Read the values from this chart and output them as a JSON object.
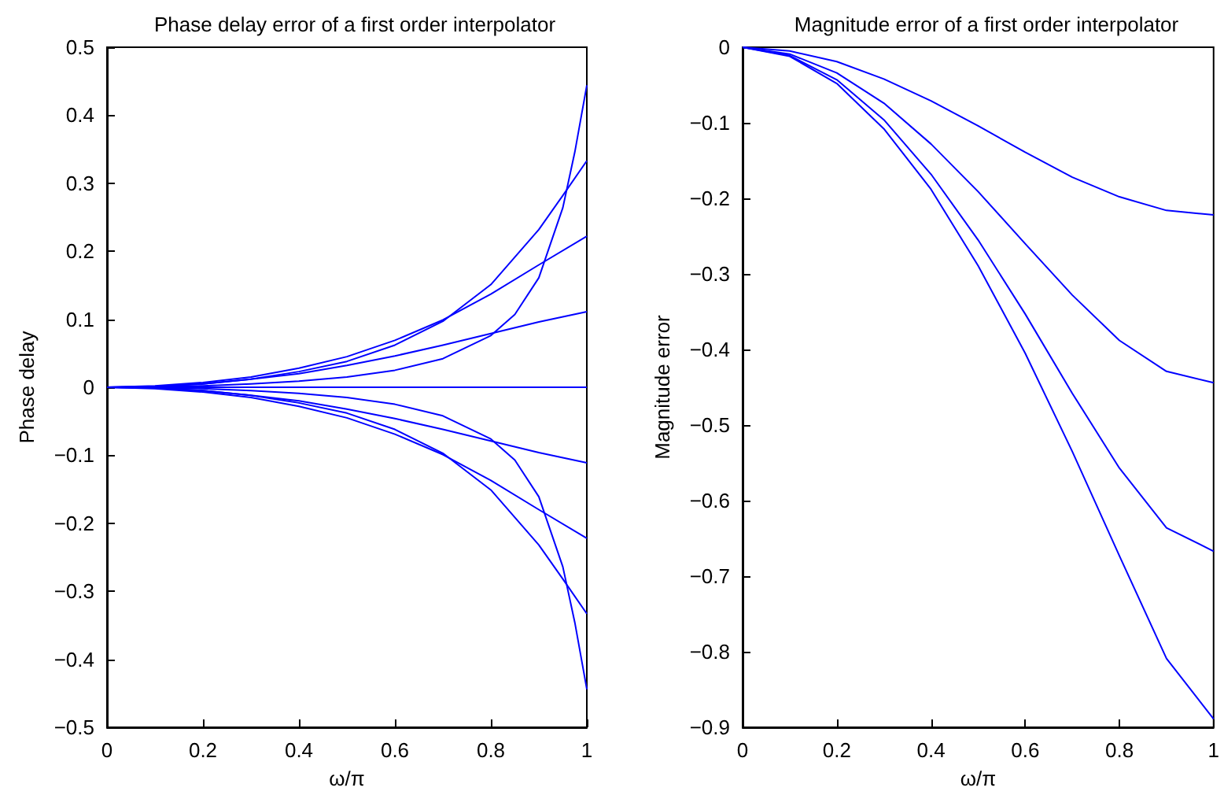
{
  "chart_data": [
    {
      "type": "line",
      "title": "Phase delay error of a first order interpolator",
      "xlabel": "ω/π",
      "ylabel": "Phase delay",
      "xlim": [
        0,
        1
      ],
      "xticks": [
        0,
        0.2,
        0.4,
        0.6,
        0.8,
        1
      ],
      "ylim": [
        -0.5,
        0.5
      ],
      "yticks": [
        {
          "value": -0.5,
          "label": "−0.5"
        },
        {
          "value": -0.4,
          "label": "−0.4"
        },
        {
          "value": -0.3,
          "label": "−0.3"
        },
        {
          "value": -0.2,
          "label": "−0.2"
        },
        {
          "value": -0.1,
          "label": "−0.1"
        },
        0,
        0.1,
        0.2,
        0.3,
        0.4,
        0.5
      ],
      "grid": false,
      "series": [
        {
          "color": "#0000ff",
          "x": [
            0,
            0.1,
            0.2,
            0.3,
            0.4,
            0.5,
            0.6,
            0.7,
            0.8,
            0.9,
            1
          ],
          "values": [
            0,
            -0.001,
            -0.005,
            -0.012,
            -0.02,
            -0.032,
            -0.046,
            -0.062,
            -0.079,
            -0.096,
            -0.111
          ]
        },
        {
          "color": "#0000ff",
          "x": [
            0,
            0.1,
            0.2,
            0.3,
            0.4,
            0.5,
            0.6,
            0.7,
            0.8,
            0.9,
            1
          ],
          "values": [
            0,
            -0.002,
            -0.007,
            -0.015,
            -0.028,
            -0.045,
            -0.069,
            -0.099,
            -0.137,
            -0.18,
            -0.222
          ]
        },
        {
          "color": "#0000ff",
          "x": [
            0,
            0.1,
            0.2,
            0.3,
            0.4,
            0.5,
            0.6,
            0.7,
            0.8,
            0.9,
            0.95,
            1
          ],
          "values": [
            0,
            -0.001,
            -0.005,
            -0.012,
            -0.023,
            -0.038,
            -0.062,
            -0.097,
            -0.151,
            -0.232,
            -0.282,
            -0.333
          ]
        },
        {
          "color": "#0000ff",
          "x": [
            0,
            0.1,
            0.2,
            0.3,
            0.4,
            0.5,
            0.6,
            0.7,
            0.8,
            0.85,
            0.9,
            0.95,
            0.975,
            1
          ],
          "values": [
            0,
            -0.001,
            -0.002,
            -0.005,
            -0.009,
            -0.015,
            -0.025,
            -0.042,
            -0.076,
            -0.107,
            -0.161,
            -0.264,
            -0.346,
            -0.444
          ]
        },
        {
          "color": "#0000ff",
          "x": [
            0,
            1
          ],
          "values": [
            0,
            0
          ]
        },
        {
          "color": "#0000ff",
          "x": [
            0,
            0.1,
            0.2,
            0.3,
            0.4,
            0.5,
            0.6,
            0.7,
            0.8,
            0.9,
            1
          ],
          "values": [
            0,
            0.001,
            0.005,
            0.012,
            0.02,
            0.032,
            0.046,
            0.062,
            0.079,
            0.096,
            0.111
          ]
        },
        {
          "color": "#0000ff",
          "x": [
            0,
            0.1,
            0.2,
            0.3,
            0.4,
            0.5,
            0.6,
            0.7,
            0.8,
            0.9,
            1
          ],
          "values": [
            0,
            0.002,
            0.007,
            0.015,
            0.028,
            0.045,
            0.069,
            0.099,
            0.137,
            0.18,
            0.222
          ]
        },
        {
          "color": "#0000ff",
          "x": [
            0,
            0.1,
            0.2,
            0.3,
            0.4,
            0.5,
            0.6,
            0.7,
            0.8,
            0.9,
            0.95,
            1
          ],
          "values": [
            0,
            0.001,
            0.005,
            0.012,
            0.023,
            0.038,
            0.062,
            0.097,
            0.151,
            0.232,
            0.282,
            0.333
          ]
        },
        {
          "color": "#0000ff",
          "x": [
            0,
            0.1,
            0.2,
            0.3,
            0.4,
            0.5,
            0.6,
            0.7,
            0.8,
            0.85,
            0.9,
            0.95,
            0.975,
            1
          ],
          "values": [
            0,
            0.001,
            0.002,
            0.005,
            0.009,
            0.015,
            0.025,
            0.042,
            0.076,
            0.107,
            0.161,
            0.264,
            0.346,
            0.444
          ]
        }
      ]
    },
    {
      "type": "line",
      "title": "Magnitude error of a first order interpolator",
      "xlabel": "ω/π",
      "ylabel": "Magnitude error",
      "xlim": [
        0,
        1
      ],
      "xticks": [
        0,
        0.2,
        0.4,
        0.6,
        0.8,
        1
      ],
      "ylim": [
        -0.9,
        0
      ],
      "yticks": [
        {
          "value": -0.9,
          "label": "−0.9"
        },
        {
          "value": -0.8,
          "label": "−0.8"
        },
        {
          "value": -0.7,
          "label": "−0.7"
        },
        {
          "value": -0.6,
          "label": "−0.6"
        },
        {
          "value": -0.5,
          "label": "−0.5"
        },
        {
          "value": -0.4,
          "label": "−0.4"
        },
        {
          "value": -0.3,
          "label": "−0.3"
        },
        {
          "value": -0.2,
          "label": "−0.2"
        },
        {
          "value": -0.1,
          "label": "−0.1"
        },
        0
      ],
      "grid": false,
      "series": [
        {
          "color": "#0000ff",
          "x": [
            0,
            0.1,
            0.2,
            0.3,
            0.4,
            0.5,
            0.6,
            0.7,
            0.8,
            0.9,
            1
          ],
          "values": [
            0,
            -0.005,
            -0.019,
            -0.042,
            -0.071,
            -0.104,
            -0.139,
            -0.172,
            -0.198,
            -0.216,
            -0.222
          ]
        },
        {
          "color": "#0000ff",
          "x": [
            0,
            0.1,
            0.2,
            0.3,
            0.4,
            0.5,
            0.6,
            0.7,
            0.8,
            0.9,
            1
          ],
          "values": [
            0,
            -0.009,
            -0.034,
            -0.074,
            -0.128,
            -0.191,
            -0.26,
            -0.328,
            -0.388,
            -0.429,
            -0.444
          ]
        },
        {
          "color": "#0000ff",
          "x": [
            0,
            0.1,
            0.2,
            0.3,
            0.4,
            0.5,
            0.6,
            0.7,
            0.8,
            0.9,
            1
          ],
          "values": [
            0,
            -0.011,
            -0.043,
            -0.096,
            -0.168,
            -0.255,
            -0.353,
            -0.458,
            -0.557,
            -0.636,
            -0.667
          ]
        },
        {
          "color": "#0000ff",
          "x": [
            0,
            0.1,
            0.2,
            0.3,
            0.4,
            0.5,
            0.6,
            0.7,
            0.8,
            0.9,
            1
          ],
          "values": [
            0,
            -0.012,
            -0.048,
            -0.108,
            -0.188,
            -0.289,
            -0.405,
            -0.535,
            -0.673,
            -0.809,
            -0.889
          ]
        }
      ]
    }
  ]
}
